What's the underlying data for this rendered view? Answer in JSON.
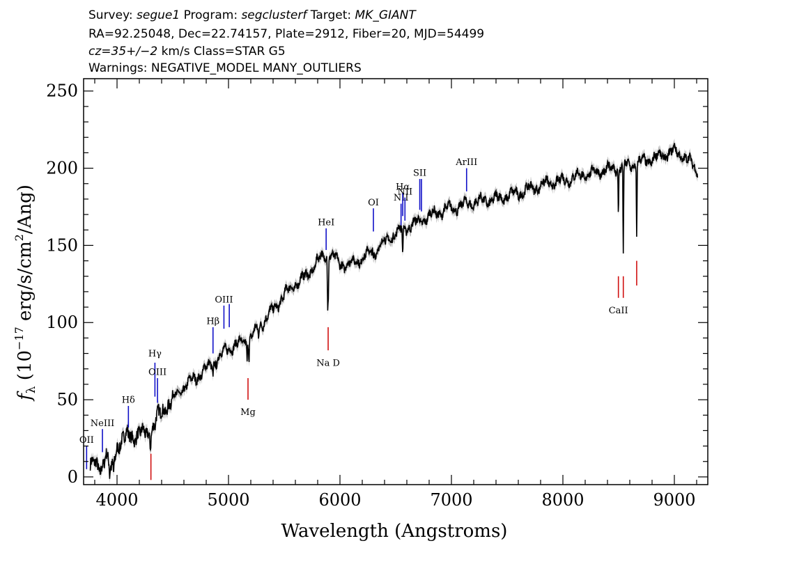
{
  "header": {
    "line1": {
      "survey_label": "Survey: ",
      "survey": "segue1",
      "program_label": " Program: ",
      "program": "segclusterf",
      "target_label": " Target: ",
      "target": "MK_GIANT"
    },
    "line2": "RA=92.25048, Dec=22.74157, Plate=2912, Fiber=20, MJD=54499",
    "line3": {
      "cz": "cz=35+/−2",
      "rest": " km/s Class=STAR G5"
    },
    "line4": "Warnings: NEGATIVE_MODEL MANY_OUTLIERS"
  },
  "chart_data": {
    "type": "line",
    "xlabel": "Wavelength (Angstroms)",
    "ylabel_main": "f",
    "ylabel_sub": "λ",
    "ylabel_rest": " (10",
    "ylabel_exp": "−17",
    "ylabel_rest2": " erg/s/cm",
    "ylabel_exp2": "2",
    "ylabel_rest3": "/Ang)",
    "xlim": [
      3700,
      9300
    ],
    "ylim": [
      -5,
      258
    ],
    "x_ticks": [
      "4000",
      "5000",
      "6000",
      "7000",
      "8000",
      "9000"
    ],
    "x_tick_values": [
      4000,
      5000,
      6000,
      7000,
      8000,
      9000
    ],
    "y_ticks": [
      "0",
      "50",
      "100",
      "150",
      "200",
      "250"
    ],
    "y_tick_values": [
      0,
      50,
      100,
      150,
      200,
      250
    ],
    "colors": {
      "spectrum": "#000000",
      "error": "#bdbdbd",
      "emission": "#1010c8",
      "absorption": "#d01010"
    },
    "spectrum_anchors": [
      [
        3800,
        8
      ],
      [
        3850,
        5
      ],
      [
        3900,
        15
      ],
      [
        3950,
        3
      ],
      [
        4000,
        20
      ],
      [
        4050,
        24
      ],
      [
        4100,
        28
      ],
      [
        4150,
        26
      ],
      [
        4200,
        28
      ],
      [
        4300,
        28
      ],
      [
        4350,
        38
      ],
      [
        4400,
        42
      ],
      [
        4500,
        50
      ],
      [
        4600,
        58
      ],
      [
        4700,
        64
      ],
      [
        4800,
        70
      ],
      [
        4900,
        76
      ],
      [
        5000,
        84
      ],
      [
        5100,
        86
      ],
      [
        5200,
        90
      ],
      [
        5300,
        100
      ],
      [
        5400,
        108
      ],
      [
        5500,
        118
      ],
      [
        5600,
        125
      ],
      [
        5700,
        130
      ],
      [
        5800,
        140
      ],
      [
        5900,
        145
      ],
      [
        6000,
        138
      ],
      [
        6100,
        138
      ],
      [
        6200,
        142
      ],
      [
        6300,
        146
      ],
      [
        6400,
        152
      ],
      [
        6500,
        158
      ],
      [
        6600,
        162
      ],
      [
        6700,
        165
      ],
      [
        6800,
        169
      ],
      [
        6900,
        172
      ],
      [
        7000,
        174
      ],
      [
        7100,
        176
      ],
      [
        7200,
        178
      ],
      [
        7400,
        180
      ],
      [
        7600,
        184
      ],
      [
        7800,
        189
      ],
      [
        8000,
        192
      ],
      [
        8200,
        196
      ],
      [
        8400,
        199
      ],
      [
        8600,
        202
      ],
      [
        8800,
        206
      ],
      [
        9000,
        211
      ],
      [
        9100,
        207
      ],
      [
        9200,
        199
      ]
    ],
    "absorption_features": [
      {
        "x": 3934,
        "depth": 8
      },
      {
        "x": 3969,
        "depth": 7
      },
      {
        "x": 4102,
        "depth": 4
      },
      {
        "x": 4300,
        "depth": 6
      },
      {
        "x": 4340,
        "depth": 5
      },
      {
        "x": 4861,
        "depth": 8
      },
      {
        "x": 5167,
        "depth": 10
      },
      {
        "x": 5184,
        "depth": 12
      },
      {
        "x": 5270,
        "depth": 8
      },
      {
        "x": 5890,
        "depth": 32
      },
      {
        "x": 5896,
        "depth": 22
      },
      {
        "x": 6300,
        "depth": 6
      },
      {
        "x": 6563,
        "depth": 20
      },
      {
        "x": 8498,
        "depth": 28
      },
      {
        "x": 8542,
        "depth": 60
      },
      {
        "x": 8662,
        "depth": 45
      }
    ],
    "emission_lines": [
      {
        "label": "OII",
        "x": 3727,
        "y_bottom": 5,
        "y_top": 20,
        "label_y": 22
      },
      {
        "label": "NeIII",
        "x": 3869,
        "y_bottom": 16,
        "y_top": 31,
        "label_y": 33
      },
      {
        "label": "Hδ",
        "x": 4102,
        "y_bottom": 32,
        "y_top": 46,
        "label_y": 48
      },
      {
        "label": "Hγ",
        "x": 4340,
        "y_bottom": 52,
        "y_top": 74,
        "label_y": 78
      },
      {
        "label": "OIII",
        "x": 4363,
        "y_bottom": 48,
        "y_top": 64,
        "label_y": 66
      },
      {
        "label": "Hβ",
        "x": 4861,
        "y_bottom": 80,
        "y_top": 97,
        "label_y": 99
      },
      {
        "label": "OIII",
        "x": 4959,
        "y_bottom": 96,
        "y_top": 111,
        "label_y": 113
      },
      {
        "label": "",
        "x": 5007,
        "y_bottom": 97,
        "y_top": 112,
        "label_y": 0
      },
      {
        "label": "HeI",
        "x": 5876,
        "y_bottom": 147,
        "y_top": 161,
        "label_y": 163
      },
      {
        "label": "OI",
        "x": 6300,
        "y_bottom": 159,
        "y_top": 174,
        "label_y": 176
      },
      {
        "label": "NII",
        "x": 6548,
        "y_bottom": 163,
        "y_top": 177,
        "label_y": 179
      },
      {
        "label": "Hα",
        "x": 6563,
        "y_bottom": 169,
        "y_top": 184,
        "label_y": 186
      },
      {
        "label": "NII",
        "x": 6583,
        "y_bottom": 166,
        "y_top": 181,
        "label_y": 183
      },
      {
        "label": "SII",
        "x": 6716,
        "y_bottom": 173,
        "y_top": 193,
        "label_y": 195
      },
      {
        "label": "",
        "x": 6731,
        "y_bottom": 172,
        "y_top": 193,
        "label_y": 0
      },
      {
        "label": "ArIII",
        "x": 7136,
        "y_bottom": 185,
        "y_top": 200,
        "label_y": 202
      }
    ],
    "absorption_lines": [
      {
        "label": "",
        "x": 4304,
        "y_bottom": -2,
        "y_top": 15,
        "label_y": 0
      },
      {
        "label": "Mg",
        "x": 5175,
        "y_bottom": 50,
        "y_top": 64,
        "label_y": 40
      },
      {
        "label": "Na  D",
        "x": 5894,
        "y_bottom": 82,
        "y_top": 97,
        "label_y": 72
      },
      {
        "label": "CaII",
        "x": 8498,
        "y_bottom": 116,
        "y_top": 130,
        "label_y": 106
      },
      {
        "label": "",
        "x": 8542,
        "y_bottom": 116,
        "y_top": 130,
        "label_y": 0
      },
      {
        "label": "",
        "x": 8662,
        "y_bottom": 124,
        "y_top": 140,
        "label_y": 0
      }
    ]
  }
}
